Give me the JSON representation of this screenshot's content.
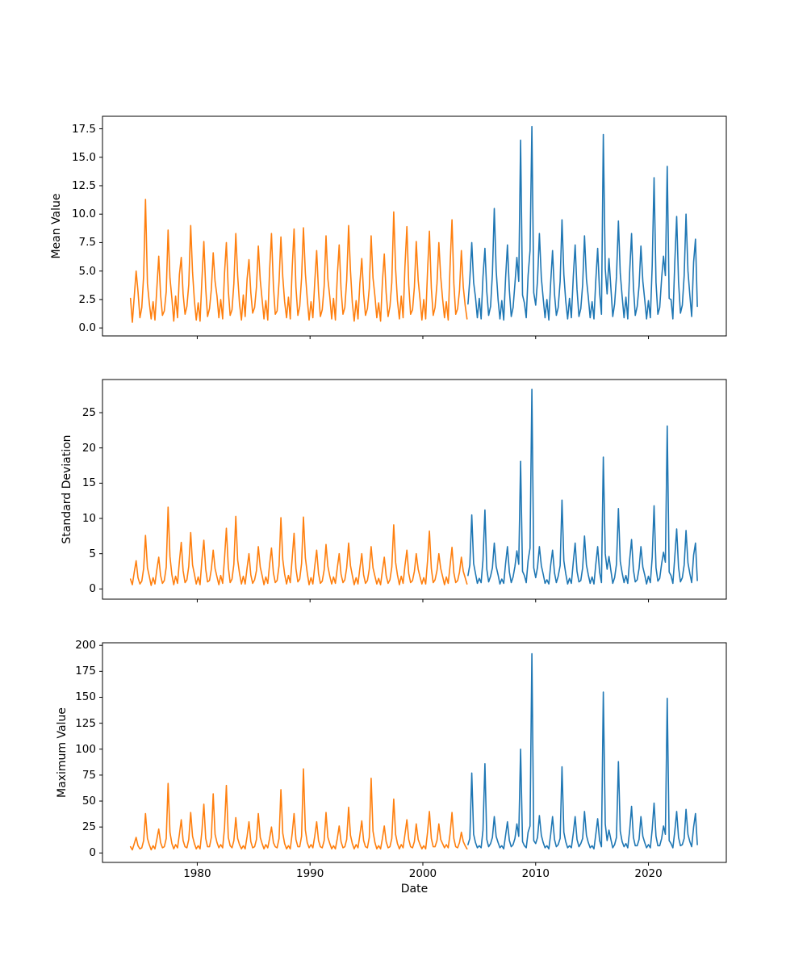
{
  "figure": {
    "background": "#ffffff",
    "axis_color": "#000000",
    "orange_hex": "#ff7f0e",
    "blue_hex": "#1f77b4"
  },
  "x_axis": {
    "label": "Date",
    "xlim": [
      1971.6,
      2026.9
    ],
    "tick_values": [
      1980,
      1990,
      2000,
      2010,
      2020
    ],
    "tick_labels": [
      "1980",
      "1990",
      "2000",
      "2010",
      "2020"
    ]
  },
  "chart_data": [
    {
      "type": "line",
      "title": "",
      "xlabel": "",
      "ylabel": "Mean Value",
      "grid": false,
      "legend": null,
      "ylim": [
        -0.7,
        18.6
      ],
      "ytick_values": [
        0.0,
        2.5,
        5.0,
        7.5,
        10.0,
        12.5,
        15.0,
        17.5
      ],
      "ytick_labels": [
        "0.0",
        "2.5",
        "5.0",
        "7.5",
        "10.0",
        "12.5",
        "15.0",
        "17.5"
      ],
      "series": [
        {
          "name": "orange-series-pre-2004",
          "color": "#ff7f0e",
          "x_start": 1974.083,
          "x_step": 0.1666667,
          "values": [
            2.6,
            0.5,
            2.8,
            5.0,
            3.2,
            0.9,
            1.8,
            4.6,
            11.3,
            3.9,
            2.2,
            0.8,
            2.3,
            0.7,
            3.4,
            6.3,
            2.9,
            1.1,
            1.5,
            3.2,
            8.6,
            4.4,
            2.6,
            0.6,
            2.8,
            0.9,
            4.7,
            6.2,
            3.0,
            1.2,
            1.9,
            3.8,
            9.0,
            4.9,
            2.4,
            0.7,
            2.2,
            0.6,
            4.2,
            7.6,
            3.5,
            1.0,
            1.7,
            3.4,
            6.6,
            4.1,
            2.8,
            0.9,
            2.5,
            0.8,
            4.8,
            7.5,
            3.3,
            1.1,
            1.6,
            3.9,
            8.3,
            4.6,
            2.1,
            0.7,
            2.9,
            1.0,
            4.3,
            6.0,
            3.1,
            1.3,
            1.8,
            3.6,
            7.2,
            4.2,
            2.5,
            0.8,
            2.4,
            0.7,
            5.1,
            8.3,
            3.7,
            1.2,
            1.5,
            4.1,
            8.0,
            4.5,
            2.3,
            0.9,
            2.7,
            0.8,
            5.3,
            8.7,
            3.6,
            1.1,
            1.9,
            4.4,
            8.8,
            4.8,
            2.6,
            0.7,
            2.3,
            0.9,
            4.0,
            6.8,
            3.2,
            1.0,
            1.6,
            3.7,
            8.1,
            4.3,
            2.7,
            0.8,
            2.6,
            0.7,
            4.6,
            7.3,
            3.4,
            1.2,
            1.8,
            4.2,
            9.0,
            5.0,
            2.2,
            0.6,
            2.4,
            0.8,
            3.9,
            6.1,
            3.0,
            1.1,
            1.7,
            3.5,
            8.1,
            4.4,
            2.8,
            0.9,
            2.2,
            0.6,
            4.1,
            6.5,
            3.1,
            1.0,
            1.9,
            4.0,
            10.2,
            5.2,
            2.4,
            0.8,
            2.8,
            0.9,
            5.4,
            8.9,
            3.8,
            1.2,
            1.6,
            3.6,
            7.6,
            4.2,
            2.5,
            0.7,
            2.5,
            0.8,
            5.0,
            8.5,
            3.5,
            1.1,
            1.8,
            3.9,
            7.5,
            4.5,
            2.6,
            0.9,
            2.3,
            0.7,
            5.6,
            9.5,
            3.9,
            1.2,
            1.7,
            3.3,
            6.8,
            3.6,
            2.0,
            0.8
          ]
        },
        {
          "name": "blue-series-2004-onward",
          "color": "#1f77b4",
          "x_start": 2004.0,
          "x_step": 0.1666667,
          "values": [
            2.1,
            4.3,
            7.5,
            4.0,
            2.7,
            0.9,
            2.6,
            0.8,
            4.5,
            7.0,
            3.2,
            1.1,
            1.9,
            4.8,
            10.5,
            5.1,
            2.5,
            0.8,
            2.4,
            0.7,
            4.4,
            7.3,
            3.3,
            1.0,
            1.8,
            3.9,
            6.2,
            4.1,
            16.5,
            2.9,
            2.2,
            0.9,
            4.6,
            6.8,
            17.7,
            3.1,
            2.0,
            4.2,
            8.3,
            4.4,
            2.6,
            0.9,
            2.5,
            0.7,
            4.0,
            6.8,
            3.0,
            1.1,
            1.8,
            4.1,
            9.5,
            4.7,
            2.4,
            0.8,
            2.6,
            0.9,
            4.5,
            7.3,
            3.4,
            1.0,
            1.7,
            3.8,
            8.1,
            4.3,
            2.7,
            0.9,
            2.3,
            0.8,
            4.2,
            7.0,
            3.1,
            1.2,
            17.0,
            5.2,
            3.0,
            6.1,
            3.5,
            1.0,
            2.1,
            4.5,
            9.4,
            4.8,
            2.8,
            0.9,
            2.7,
            0.8,
            5.0,
            8.3,
            3.6,
            1.1,
            1.9,
            3.7,
            7.2,
            4.1,
            2.5,
            0.8,
            2.4,
            0.9,
            5.5,
            13.2,
            4.0,
            1.2,
            1.8,
            4.4,
            6.3,
            4.6,
            14.2,
            2.6,
            2.5,
            0.8,
            5.8,
            9.8,
            4.1,
            1.3,
            2.0,
            4.6,
            10.0,
            5.0,
            2.9,
            1.0,
            5.8,
            7.8,
            1.9
          ]
        }
      ]
    },
    {
      "type": "line",
      "title": "",
      "xlabel": "",
      "ylabel": "Standard Deviation",
      "grid": false,
      "legend": null,
      "ylim": [
        -1.45,
        29.7
      ],
      "ytick_values": [
        0,
        5,
        10,
        15,
        20,
        25
      ],
      "ytick_labels": [
        "0",
        "5",
        "10",
        "15",
        "20",
        "25"
      ],
      "series": [
        {
          "name": "orange-series-pre-2004",
          "color": "#ff7f0e",
          "x_start": 1974.083,
          "x_step": 0.1666667,
          "values": [
            1.4,
            0.6,
            2.4,
            4.0,
            1.6,
            0.7,
            1.1,
            2.9,
            7.6,
            3.0,
            1.8,
            0.5,
            1.6,
            0.7,
            2.7,
            4.5,
            1.9,
            0.8,
            1.2,
            3.1,
            11.6,
            4.6,
            2.0,
            0.6,
            1.8,
            0.8,
            3.9,
            6.6,
            2.6,
            0.9,
            1.3,
            3.2,
            8.0,
            3.4,
            2.1,
            0.7,
            1.7,
            0.6,
            4.1,
            6.9,
            2.8,
            1.0,
            1.2,
            2.8,
            5.5,
            2.9,
            1.7,
            0.6,
            1.9,
            0.8,
            4.3,
            8.6,
            3.1,
            0.9,
            1.4,
            3.5,
            10.3,
            4.1,
            2.2,
            0.7,
            1.8,
            0.7,
            3.0,
            5.0,
            2.0,
            0.8,
            1.3,
            2.6,
            6.0,
            3.1,
            1.9,
            0.6,
            1.7,
            0.8,
            3.5,
            5.8,
            2.3,
            0.9,
            1.2,
            3.3,
            10.1,
            4.2,
            2.1,
            0.7,
            1.9,
            0.9,
            4.4,
            7.9,
            2.9,
            1.0,
            1.4,
            3.6,
            10.2,
            4.4,
            2.3,
            0.6,
            1.6,
            0.7,
            3.2,
            5.5,
            2.2,
            0.8,
            1.1,
            2.7,
            6.3,
            3.2,
            1.8,
            0.7,
            1.7,
            0.8,
            3.0,
            5.0,
            2.1,
            0.9,
            1.3,
            3.0,
            6.5,
            3.3,
            1.9,
            0.6,
            1.6,
            0.7,
            2.9,
            5.0,
            2.0,
            0.8,
            1.2,
            2.8,
            6.0,
            3.0,
            1.8,
            0.7,
            1.5,
            0.6,
            2.6,
            4.5,
            1.9,
            0.8,
            1.3,
            3.1,
            9.1,
            3.8,
            2.0,
            0.6,
            1.8,
            0.8,
            3.3,
            5.5,
            2.2,
            0.9,
            1.2,
            2.5,
            5.0,
            2.8,
            1.7,
            0.7,
            1.6,
            0.7,
            4.0,
            8.2,
            2.9,
            0.9,
            1.3,
            2.6,
            5.0,
            2.9,
            1.8,
            0.6,
            1.7,
            0.8,
            3.4,
            5.9,
            2.3,
            0.9,
            1.2,
            2.4,
            4.5,
            2.5,
            1.6,
            0.7
          ]
        },
        {
          "name": "blue-series-2004-onward",
          "color": "#1f77b4",
          "x_start": 2004.0,
          "x_step": 0.1666667,
          "values": [
            1.9,
            3.4,
            10.5,
            3.6,
            2.2,
            0.8,
            1.5,
            0.9,
            4.1,
            11.2,
            2.8,
            1.0,
            1.8,
            3.0,
            6.5,
            3.2,
            2.0,
            0.7,
            1.4,
            0.8,
            3.6,
            6.0,
            2.4,
            0.9,
            1.7,
            3.2,
            5.4,
            3.5,
            18.1,
            2.5,
            1.9,
            0.9,
            4.0,
            5.8,
            28.3,
            3.0,
            1.6,
            3.1,
            6.0,
            3.3,
            2.1,
            0.8,
            1.3,
            0.7,
            3.4,
            5.5,
            2.3,
            0.9,
            1.8,
            3.3,
            12.6,
            4.0,
            2.2,
            0.7,
            1.5,
            0.8,
            3.8,
            6.5,
            2.5,
            1.0,
            1.2,
            3.0,
            7.5,
            3.4,
            2.0,
            0.8,
            1.7,
            0.7,
            3.5,
            6.0,
            2.4,
            0.9,
            18.7,
            5.0,
            2.8,
            4.6,
            2.6,
            0.8,
            1.6,
            3.5,
            11.4,
            3.9,
            2.3,
            0.9,
            1.9,
            0.8,
            4.2,
            7.0,
            2.7,
            1.0,
            1.3,
            2.9,
            6.0,
            3.1,
            2.0,
            0.7,
            1.8,
            0.9,
            4.5,
            11.8,
            3.0,
            1.1,
            1.5,
            3.6,
            5.2,
            3.8,
            23.1,
            2.4,
            1.9,
            0.8,
            4.6,
            8.5,
            3.1,
            1.0,
            1.6,
            3.4,
            8.3,
            3.7,
            2.2,
            0.9,
            4.8,
            6.5,
            1.2
          ]
        }
      ]
    },
    {
      "type": "line",
      "title": "",
      "xlabel": "Date",
      "ylabel": "Maximum Value",
      "grid": false,
      "legend": null,
      "ylim": [
        -9.1,
        202.5
      ],
      "ytick_values": [
        0,
        25,
        50,
        75,
        100,
        125,
        150,
        175,
        200
      ],
      "ytick_labels": [
        "0",
        "25",
        "50",
        "75",
        "100",
        "125",
        "150",
        "175",
        "200"
      ],
      "series": [
        {
          "name": "orange-series-pre-2004",
          "color": "#ff7f0e",
          "x_start": 1974.083,
          "x_step": 0.1666667,
          "values": [
            6,
            3,
            9,
            15,
            7,
            4,
            5,
            12,
            38,
            14,
            8,
            3,
            7,
            4,
            13,
            23,
            10,
            5,
            6,
            14,
            67,
            20,
            9,
            4,
            8,
            5,
            18,
            32,
            12,
            6,
            5,
            13,
            39,
            16,
            9,
            4,
            7,
            4,
            21,
            47,
            14,
            6,
            6,
            15,
            57,
            18,
            10,
            5,
            8,
            5,
            24,
            65,
            15,
            7,
            5,
            12,
            34,
            14,
            8,
            4,
            7,
            4,
            16,
            30,
            11,
            5,
            6,
            13,
            38,
            15,
            9,
            4,
            8,
            5,
            14,
            25,
            10,
            6,
            5,
            14,
            61,
            19,
            9,
            4,
            7,
            4,
            19,
            38,
            13,
            6,
            6,
            16,
            81,
            22,
            10,
            5,
            8,
            5,
            16,
            30,
            12,
            6,
            5,
            12,
            39,
            15,
            9,
            4,
            7,
            4,
            14,
            26,
            11,
            5,
            6,
            13,
            44,
            17,
            9,
            4,
            8,
            5,
            17,
            31,
            12,
            6,
            5,
            15,
            72,
            21,
            10,
            4,
            7,
            4,
            14,
            26,
            11,
            5,
            6,
            14,
            52,
            18,
            9,
            4,
            8,
            5,
            18,
            32,
            13,
            6,
            5,
            11,
            28,
            13,
            8,
            4,
            7,
            4,
            20,
            40,
            14,
            6,
            6,
            12,
            28,
            13,
            9,
            5,
            8,
            5,
            19,
            39,
            14,
            6,
            5,
            10,
            20,
            11,
            7,
            4
          ]
        },
        {
          "name": "blue-series-2004-onward",
          "color": "#1f77b4",
          "x_start": 2004.0,
          "x_step": 0.1666667,
          "values": [
            8,
            14,
            77,
            18,
            10,
            5,
            7,
            5,
            22,
            86,
            13,
            6,
            9,
            15,
            35,
            16,
            10,
            5,
            7,
            4,
            17,
            30,
            12,
            6,
            8,
            14,
            28,
            16,
            100,
            11,
            7,
            5,
            20,
            26,
            192,
            12,
            9,
            15,
            36,
            17,
            10,
            5,
            7,
            4,
            18,
            35,
            13,
            6,
            8,
            14,
            83,
            20,
            11,
            5,
            7,
            5,
            19,
            35,
            13,
            6,
            9,
            14,
            40,
            17,
            10,
            5,
            7,
            4,
            18,
            33,
            12,
            6,
            155,
            28,
            12,
            22,
            13,
            5,
            8,
            15,
            88,
            21,
            11,
            6,
            9,
            5,
            22,
            45,
            15,
            7,
            7,
            13,
            35,
            16,
            10,
            5,
            8,
            5,
            23,
            48,
            16,
            7,
            7,
            14,
            26,
            18,
            149,
            12,
            9,
            5,
            21,
            40,
            15,
            7,
            8,
            14,
            42,
            18,
            11,
            6,
            25,
            38,
            8
          ]
        }
      ]
    }
  ]
}
